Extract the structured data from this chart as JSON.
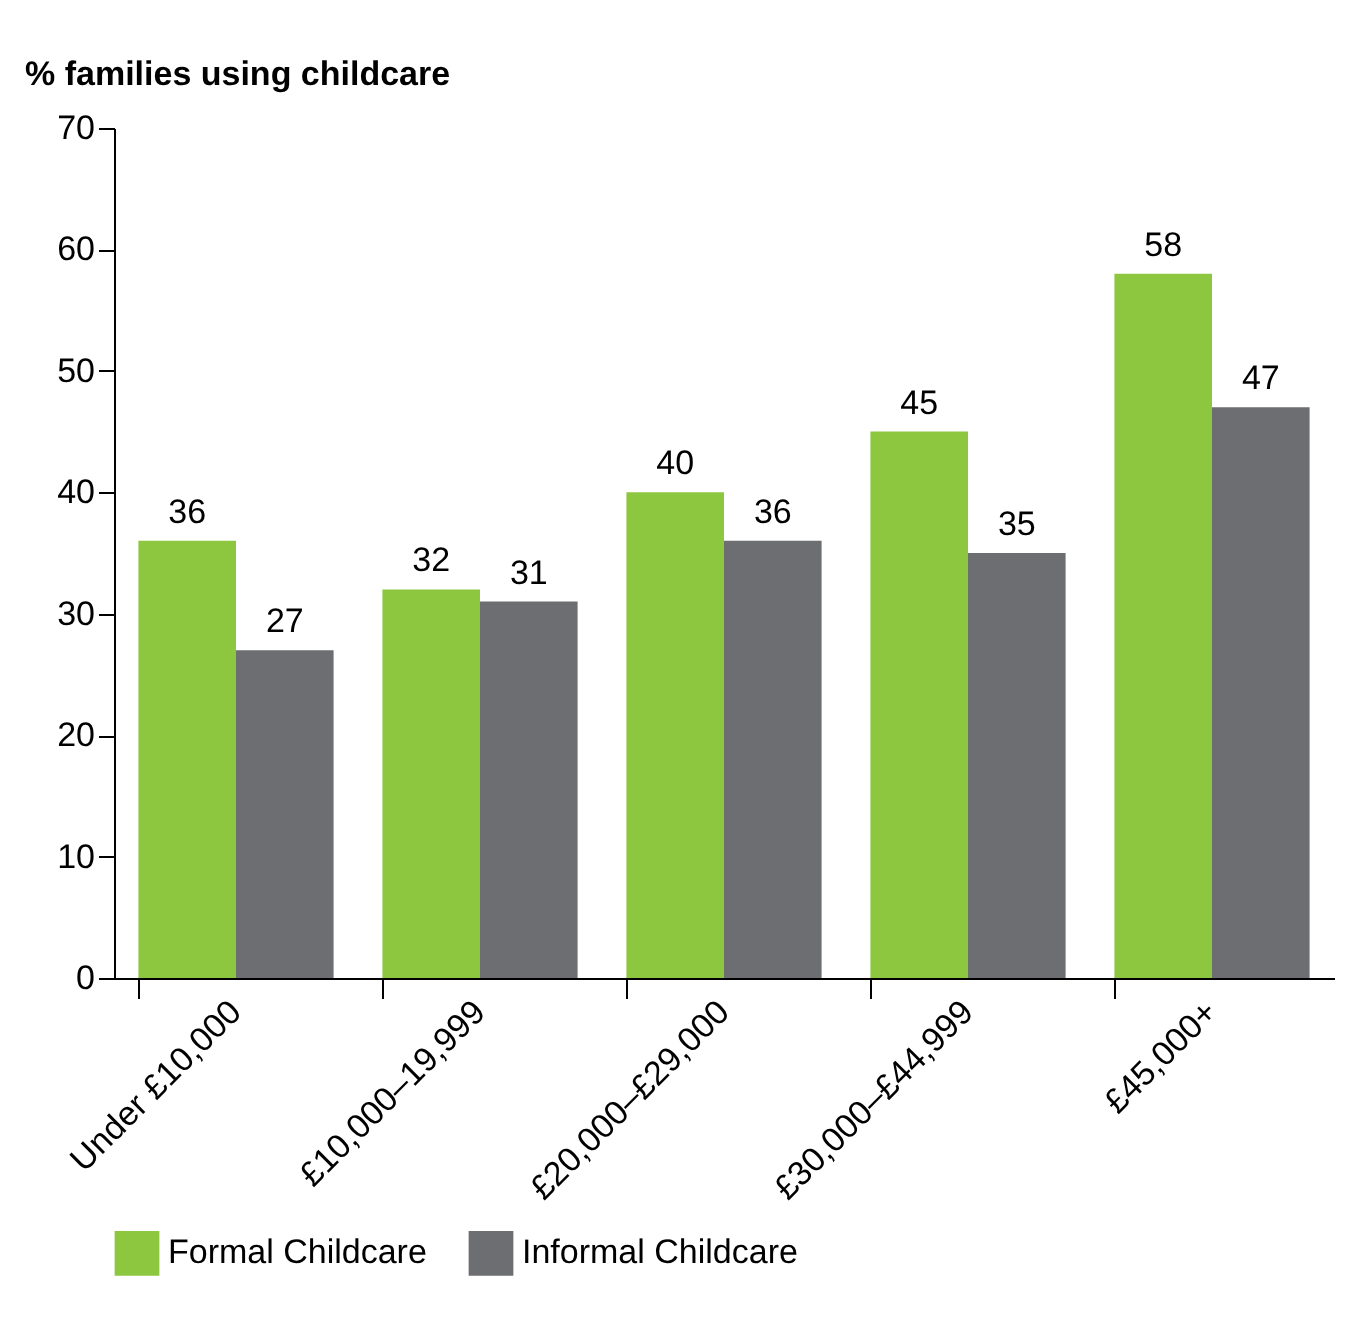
{
  "chart_data": {
    "type": "bar",
    "ylabel": "% families using childcare",
    "categories": [
      "Under £10,000",
      "£10,000–19,999",
      "£20,000–£29,000",
      "£30,000–£44,999",
      "£45,000+"
    ],
    "series": [
      {
        "name": "Formal Childcare",
        "color": "#8dc63f",
        "values": [
          36,
          32,
          40,
          45,
          58
        ]
      },
      {
        "name": "Informal Childcare",
        "color": "#6d6e71",
        "values": [
          27,
          31,
          36,
          35,
          47
        ]
      }
    ],
    "ylim": [
      0,
      70
    ],
    "yticks": [
      0,
      10,
      20,
      30,
      40,
      50,
      60,
      70
    ],
    "grid": false,
    "legend": "bottom",
    "data_labels": true
  }
}
